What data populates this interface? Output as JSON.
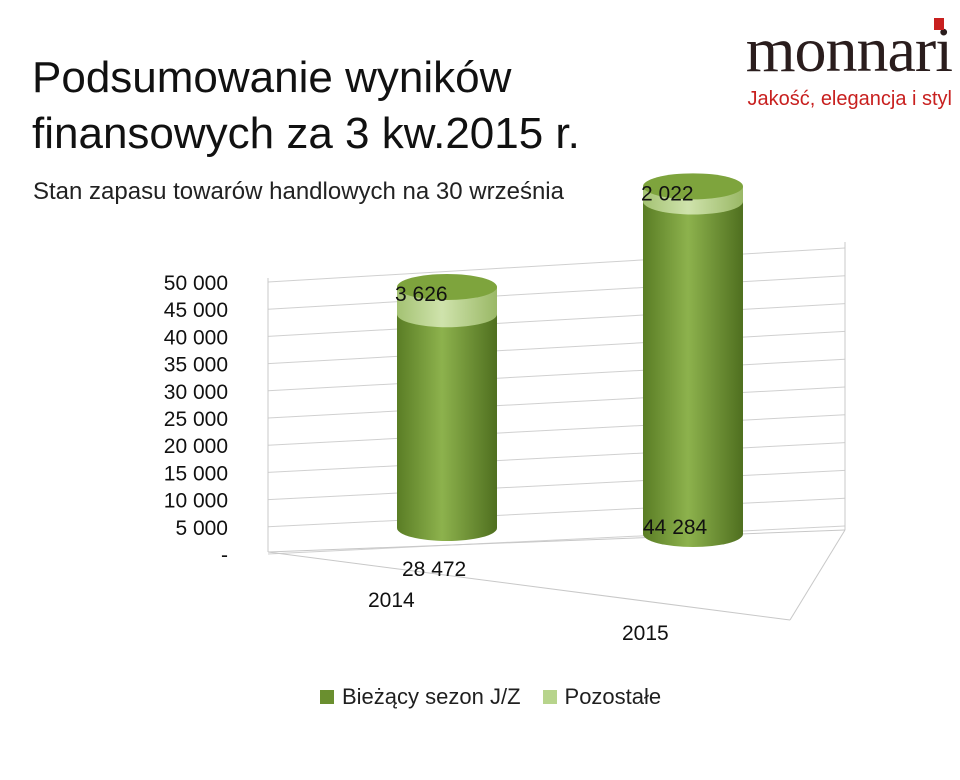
{
  "header": {
    "title": "Podsumowanie wyników finansowych za 3 kw.2015 r.",
    "subtitle": "Stan zapasu towarów handlowych na 30 września"
  },
  "logo": {
    "word": "monnari",
    "tagline": "Jakość, elegancja i styl",
    "accent_color": "#c8201f"
  },
  "chart_data": {
    "type": "bar",
    "style": "3d-cylinder-stacked",
    "categories": [
      "2014",
      "2015"
    ],
    "series": [
      {
        "name": "Bieżący sezon J/Z",
        "values": [
          28472,
          44284
        ],
        "labels": [
          "28 472",
          "44 284"
        ],
        "color": "#6a8f2f"
      },
      {
        "name": "Pozostałe",
        "values": [
          3626,
          2022
        ],
        "labels": [
          "3 626",
          "2 022"
        ],
        "color": "#b7d48c"
      }
    ],
    "y_ticks": [
      "-",
      "5 000",
      "10 000",
      "15 000",
      "20 000",
      "25 000",
      "30 000",
      "35 000",
      "40 000",
      "45 000",
      "50 000"
    ],
    "ylim": [
      0,
      50000
    ],
    "grid": true,
    "legend_position": "bottom"
  }
}
